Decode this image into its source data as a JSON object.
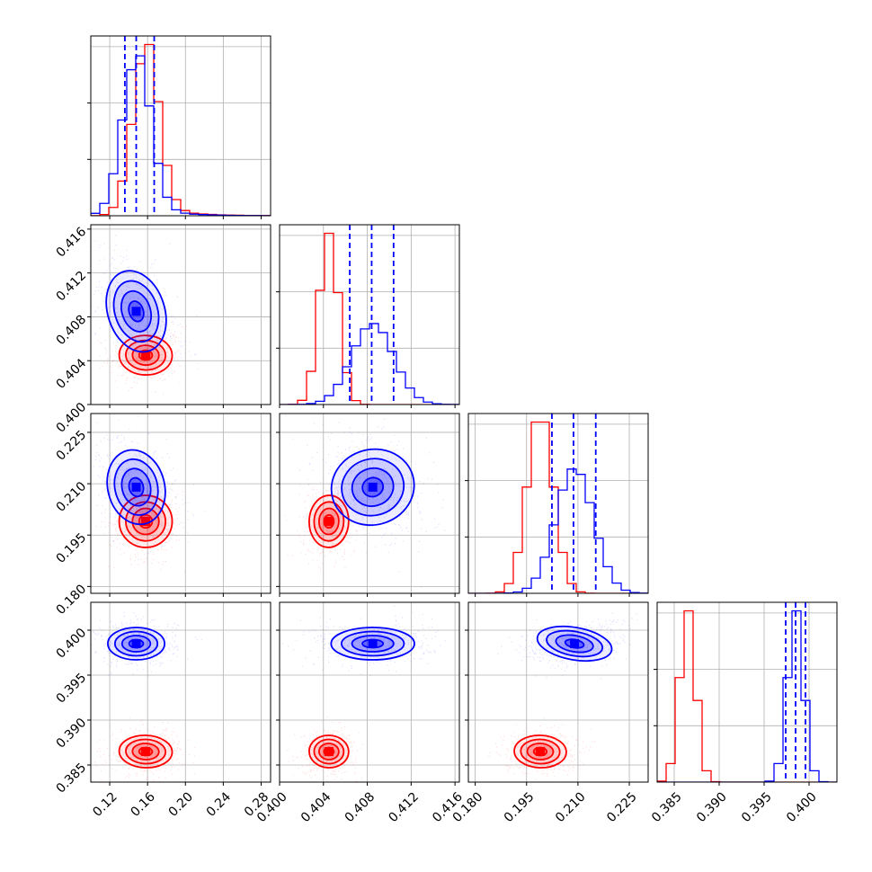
{
  "chart_data": {
    "type": "corner",
    "grid": true,
    "colors": {
      "series_a": "#ff0000",
      "series_b": "#0000ff",
      "quantile_line": "#0000ff"
    },
    "series": [
      {
        "color": "#ff0000",
        "means": [
          0.158,
          0.4045,
          0.199,
          0.3865
        ],
        "sds": [
          0.014,
          0.0009,
          0.0038,
          0.0009
        ]
      },
      {
        "color": "#0000ff",
        "means": [
          0.148,
          0.4085,
          0.209,
          0.3985
        ],
        "sds": [
          0.015,
          0.0019,
          0.0055,
          0.0009
        ]
      }
    ],
    "correlations_series_b": [
      [
        0,
        1,
        -0.45
      ],
      [
        0,
        2,
        -0.35
      ],
      [
        1,
        2,
        -0.4
      ],
      [
        2,
        3,
        0.25
      ]
    ],
    "quantiles_series_b": [
      [
        0.136,
        0.148,
        0.167
      ],
      [
        0.4064,
        0.4084,
        0.4104
      ],
      [
        0.2024,
        0.2087,
        0.2152
      ],
      [
        0.3974,
        0.3985,
        0.3996
      ]
    ],
    "variables": [
      {
        "range": [
          0.1,
          0.29
        ],
        "ticks": [
          0.12,
          0.16,
          0.2,
          0.24,
          0.28
        ],
        "tick_labels": [
          "0.12",
          "0.16",
          "0.20",
          "0.24",
          "0.28"
        ]
      },
      {
        "range": [
          0.4,
          0.4164
        ],
        "ticks": [
          0.4,
          0.404,
          0.408,
          0.412,
          0.416
        ],
        "tick_labels": [
          "0.400",
          "0.404",
          "0.408",
          "0.412",
          "0.416"
        ]
      },
      {
        "range": [
          0.178,
          0.2305
        ],
        "ticks": [
          0.18,
          0.195,
          0.21,
          0.225
        ],
        "tick_labels": [
          "0.180",
          "0.195",
          "0.210",
          "0.225"
        ]
      },
      {
        "range": [
          0.3831,
          0.4031
        ],
        "ticks": [
          0.385,
          0.39,
          0.395,
          0.4
        ],
        "tick_labels": [
          "0.385",
          "0.390",
          "0.395",
          "0.400"
        ]
      }
    ]
  }
}
